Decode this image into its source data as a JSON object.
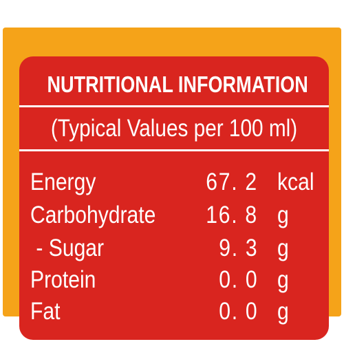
{
  "title": "NUTRITIONAL INFORMATION",
  "subtitle": "(Typical Values per 100 ml)",
  "rows": [
    {
      "name": "Energy",
      "value": "67. 2",
      "unit": "kcal"
    },
    {
      "name": "Carbohydrate",
      "value": "16. 8",
      "unit": "g"
    },
    {
      "name": " - Sugar",
      "value": "9. 3",
      "unit": "g"
    },
    {
      "name": "Protein",
      "value": "0. 0",
      "unit": "g"
    },
    {
      "name": "Fat",
      "value": "0. 0",
      "unit": "g"
    }
  ],
  "colors": {
    "background": "#d9251f",
    "border": "#f5a319",
    "text": "#ffffff"
  }
}
